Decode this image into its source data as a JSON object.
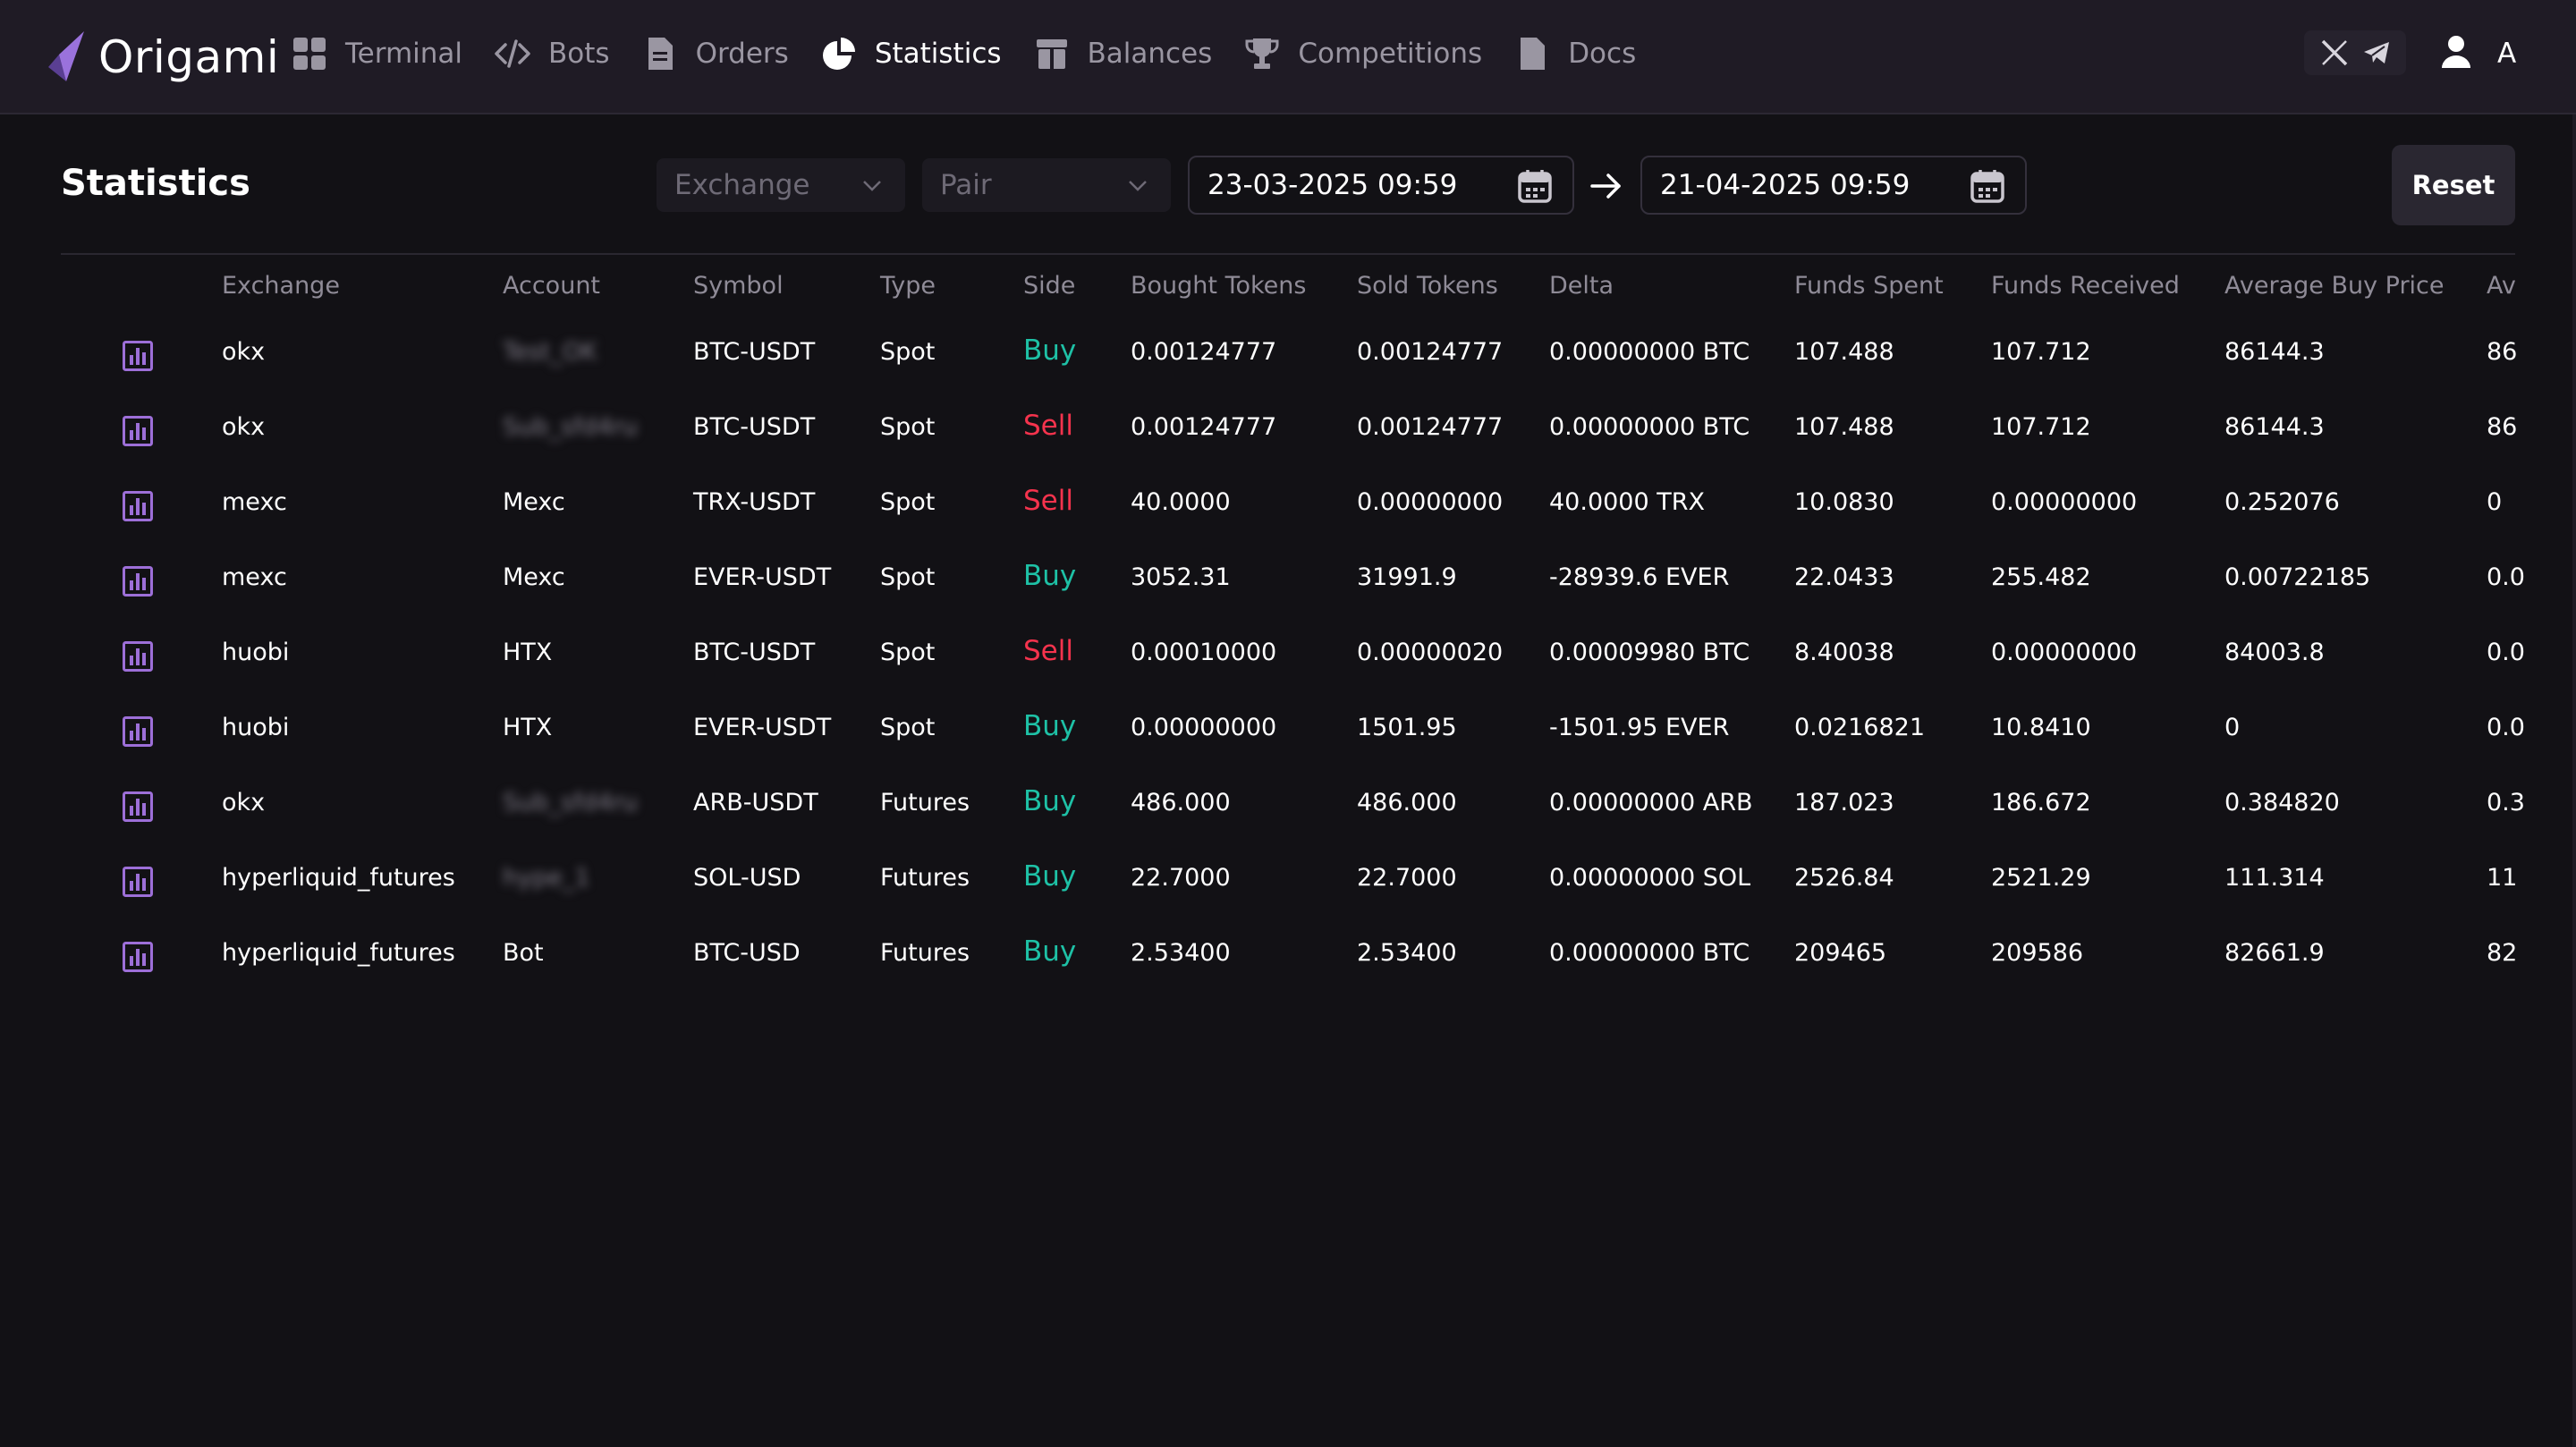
{
  "app": {
    "name": "Origami",
    "accent": "#8e64d6"
  },
  "nav": {
    "items": [
      {
        "label": "Terminal",
        "icon": "grid-icon",
        "active": false
      },
      {
        "label": "Bots",
        "icon": "code-icon",
        "active": false
      },
      {
        "label": "Orders",
        "icon": "document-icon",
        "active": false
      },
      {
        "label": "Statistics",
        "icon": "pie-chart-icon",
        "active": true
      },
      {
        "label": "Balances",
        "icon": "wallet-icon",
        "active": false
      },
      {
        "label": "Competitions",
        "icon": "trophy-icon",
        "active": false
      },
      {
        "label": "Docs",
        "icon": "file-icon",
        "active": false
      }
    ]
  },
  "header_right": {
    "social": [
      "x-icon",
      "telegram-icon"
    ],
    "user_initial": "A"
  },
  "page": {
    "title": "Statistics"
  },
  "filters": {
    "exchange_placeholder": "Exchange",
    "pair_placeholder": "Pair",
    "date_from": "23-03-2025 09:59",
    "date_to": "21-04-2025 09:59",
    "reset_label": "Reset"
  },
  "table": {
    "columns": [
      "Exchange",
      "Account",
      "Symbol",
      "Type",
      "Side",
      "Bought Tokens",
      "Sold Tokens",
      "Delta",
      "Funds Spent",
      "Funds Received",
      "Average Buy Price",
      "Av"
    ],
    "rows": [
      {
        "exchange": "okx",
        "account": "Test_OK",
        "account_blurred": true,
        "symbol": "BTC-USDT",
        "type": "Spot",
        "side": "Buy",
        "bought": "0.00124777",
        "sold": "0.00124777",
        "delta": "0.00000000 BTC",
        "funds_spent": "107.488",
        "funds_received": "107.712",
        "avg_buy": "86144.3",
        "av": "86"
      },
      {
        "exchange": "okx",
        "account": "Sub_sfd4ru",
        "account_blurred": true,
        "symbol": "BTC-USDT",
        "type": "Spot",
        "side": "Sell",
        "bought": "0.00124777",
        "sold": "0.00124777",
        "delta": "0.00000000 BTC",
        "funds_spent": "107.488",
        "funds_received": "107.712",
        "avg_buy": "86144.3",
        "av": "86"
      },
      {
        "exchange": "mexc",
        "account": "Mexc",
        "account_blurred": false,
        "symbol": "TRX-USDT",
        "type": "Spot",
        "side": "Sell",
        "bought": "40.0000",
        "sold": "0.00000000",
        "delta": "40.0000 TRX",
        "funds_spent": "10.0830",
        "funds_received": "0.00000000",
        "avg_buy": "0.252076",
        "av": "0"
      },
      {
        "exchange": "mexc",
        "account": "Mexc",
        "account_blurred": false,
        "symbol": "EVER-USDT",
        "type": "Spot",
        "side": "Buy",
        "bought": "3052.31",
        "sold": "31991.9",
        "delta": "-28939.6 EVER",
        "funds_spent": "22.0433",
        "funds_received": "255.482",
        "avg_buy": "0.00722185",
        "av": "0.0"
      },
      {
        "exchange": "huobi",
        "account": "HTX",
        "account_blurred": false,
        "symbol": "BTC-USDT",
        "type": "Spot",
        "side": "Sell",
        "bought": "0.00010000",
        "sold": "0.00000020",
        "delta": "0.00009980 BTC",
        "funds_spent": "8.40038",
        "funds_received": "0.00000000",
        "avg_buy": "84003.8",
        "av": "0.0"
      },
      {
        "exchange": "huobi",
        "account": "HTX",
        "account_blurred": false,
        "symbol": "EVER-USDT",
        "type": "Spot",
        "side": "Buy",
        "bought": "0.00000000",
        "sold": "1501.95",
        "delta": "-1501.95 EVER",
        "funds_spent": "0.0216821",
        "funds_received": "10.8410",
        "avg_buy": "0",
        "av": "0.0"
      },
      {
        "exchange": "okx",
        "account": "Sub_sfd4ru",
        "account_blurred": true,
        "symbol": "ARB-USDT",
        "type": "Futures",
        "side": "Buy",
        "bought": "486.000",
        "sold": "486.000",
        "delta": "0.00000000 ARB",
        "funds_spent": "187.023",
        "funds_received": "186.672",
        "avg_buy": "0.384820",
        "av": "0.3"
      },
      {
        "exchange": "hyperliquid_futures",
        "account": "hype_1",
        "account_blurred": true,
        "symbol": "SOL-USD",
        "type": "Futures",
        "side": "Buy",
        "bought": "22.7000",
        "sold": "22.7000",
        "delta": "0.00000000 SOL",
        "funds_spent": "2526.84",
        "funds_received": "2521.29",
        "avg_buy": "111.314",
        "av": "11"
      },
      {
        "exchange": "hyperliquid_futures",
        "account": "Bot",
        "account_blurred": false,
        "symbol": "BTC-USD",
        "type": "Futures",
        "side": "Buy",
        "bought": "2.53400",
        "sold": "2.53400",
        "delta": "0.00000000 BTC",
        "funds_spent": "209465",
        "funds_received": "209586",
        "avg_buy": "82661.9",
        "av": "82"
      }
    ]
  },
  "colors": {
    "buy": "#1ec1a6",
    "sell": "#f5334d",
    "background": "#121115",
    "topbar": "#1f1b25",
    "row_icon": "#9d6fd8"
  }
}
